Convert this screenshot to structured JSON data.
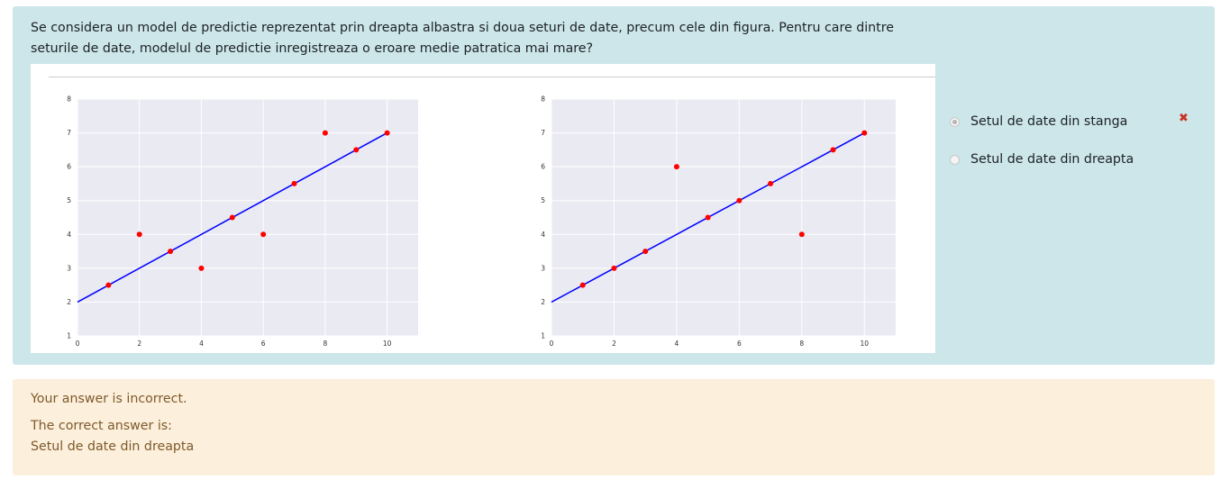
{
  "question": {
    "text": "Se considera un model de predictie reprezentat prin dreapta albastra si doua seturi de date, precum cele din figura. Pentru care dintre seturile de date, modelul de predictie inregistreaza o eroare medie patratica mai mare?"
  },
  "answers": {
    "options": [
      {
        "label": "Setul de date din stanga",
        "selected": true
      },
      {
        "label": "Setul de date din dreapta",
        "selected": false
      }
    ],
    "incorrect_mark": "✖"
  },
  "feedback": {
    "result": "Your answer is incorrect.",
    "correct_heading": "The correct answer is:",
    "correct_value": "Setul de date din dreapta"
  },
  "colors": {
    "panel": "#eaeaf2",
    "line": "#0000ff",
    "points": "#ff0000"
  },
  "chart_data": [
    {
      "type": "scatter",
      "title": "",
      "xlabel": "",
      "ylabel": "",
      "xlim": [
        0,
        11
      ],
      "ylim": [
        1,
        8
      ],
      "xticks": [
        0,
        2,
        4,
        6,
        8,
        10
      ],
      "yticks": [
        1,
        2,
        3,
        4,
        5,
        6,
        7,
        8
      ],
      "line": {
        "x": [
          0,
          10
        ],
        "y": [
          2,
          7
        ]
      },
      "points": {
        "x": [
          1,
          2,
          3,
          4,
          5,
          6,
          7,
          8,
          9,
          10
        ],
        "y": [
          2.5,
          4,
          3.5,
          3,
          4.5,
          4,
          5.5,
          7,
          6.5,
          7
        ]
      },
      "grid": true
    },
    {
      "type": "scatter",
      "title": "",
      "xlabel": "",
      "ylabel": "",
      "xlim": [
        0,
        11
      ],
      "ylim": [
        1,
        8
      ],
      "xticks": [
        0,
        2,
        4,
        6,
        8,
        10
      ],
      "yticks": [
        1,
        2,
        3,
        4,
        5,
        6,
        7,
        8
      ],
      "line": {
        "x": [
          0,
          10
        ],
        "y": [
          2,
          7
        ]
      },
      "points": {
        "x": [
          1,
          2,
          3,
          4,
          5,
          6,
          7,
          8,
          9,
          10
        ],
        "y": [
          2.5,
          3,
          3.5,
          6,
          4.5,
          5,
          5.5,
          4,
          6.5,
          7
        ]
      },
      "grid": true
    }
  ]
}
